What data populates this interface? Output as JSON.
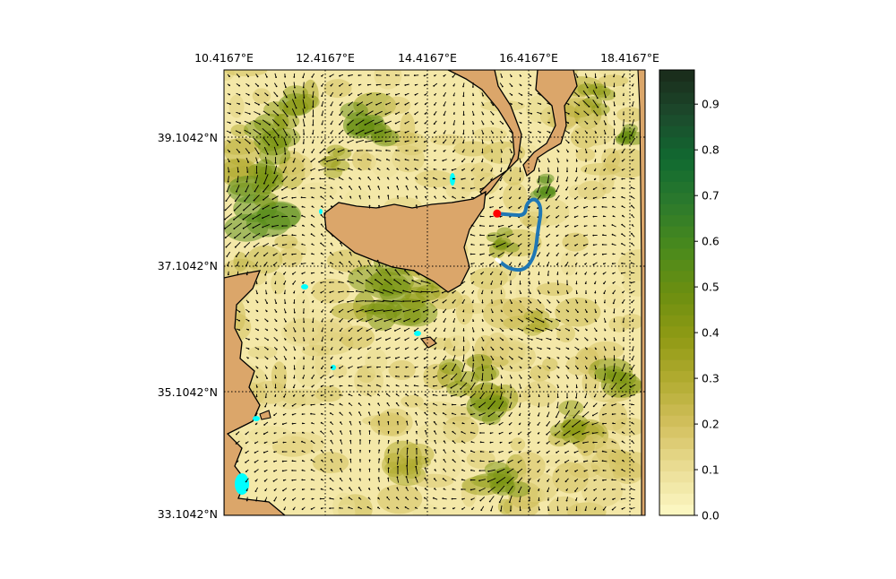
{
  "map": {
    "lon_ticks": [
      "10.4167°E",
      "12.4167°E",
      "14.4167°E",
      "16.4167°E",
      "18.4167°E"
    ],
    "lat_ticks": [
      "39.1042°N",
      "37.1042°N",
      "35.1042°N",
      "33.1042°N"
    ],
    "lon_range": [
      10.4167,
      18.7167
    ],
    "lat_range": [
      33.1042,
      40.1542
    ],
    "colors": {
      "land": "#dba66a",
      "shallow_water": "#00ffff",
      "trajectory": "#1f77b4",
      "start_marker": "#ff0000",
      "end_marker": "#ffffff"
    },
    "trajectory": [
      [
        15.8,
        37.88
      ],
      [
        16.1,
        37.86
      ],
      [
        16.35,
        37.85
      ],
      [
        16.38,
        38.05
      ],
      [
        16.55,
        38.13
      ],
      [
        16.68,
        37.97
      ],
      [
        16.6,
        37.6
      ],
      [
        16.55,
        37.22
      ],
      [
        16.35,
        36.98
      ],
      [
        16.05,
        37.0
      ],
      [
        15.85,
        37.12
      ]
    ]
  },
  "colorbar": {
    "min": 0.0,
    "max": 0.975,
    "ticks": [
      "0.0",
      "0.1",
      "0.2",
      "0.3",
      "0.4",
      "0.5",
      "0.6",
      "0.7",
      "0.8",
      "0.9"
    ],
    "stops": [
      "#fdf9c6",
      "#ecdf98",
      "#d4c160",
      "#b3ac32",
      "#8f9a14",
      "#6c8f10",
      "#4a8a1c",
      "#2c7a2c",
      "#106a30",
      "#1c4a2c",
      "#1a2a1a"
    ]
  }
}
